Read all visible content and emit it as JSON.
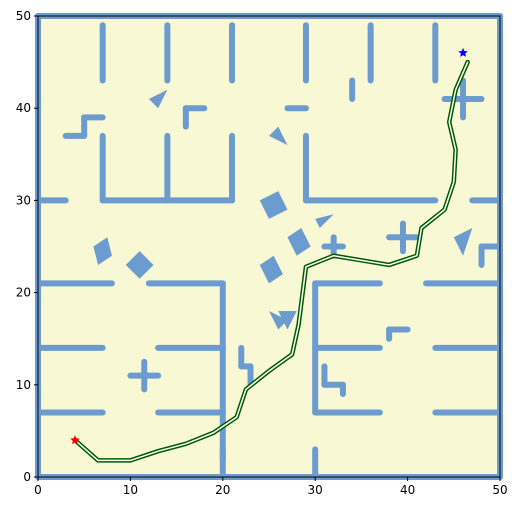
{
  "chart_data": {
    "type": "scatter",
    "xlim": [
      0,
      50
    ],
    "ylim": [
      0,
      50
    ],
    "x_ticks": [
      "0",
      "10",
      "20",
      "30",
      "40",
      "50"
    ],
    "y_ticks": [
      "0",
      "10",
      "20",
      "30",
      "40",
      "50"
    ],
    "grid": false,
    "colors": {
      "background": "#f8f8d4",
      "wall": "#6b9bcf",
      "path_outer": "#005a00",
      "path_inner": "#ffffff",
      "start": "#ff0000",
      "goal": "#0000ff"
    },
    "walls": [
      [
        [
          0,
          50
        ],
        [
          50,
          50
        ]
      ],
      [
        [
          0,
          0
        ],
        [
          50,
          0
        ]
      ],
      [
        [
          0,
          0
        ],
        [
          0,
          50
        ]
      ],
      [
        [
          50,
          0
        ],
        [
          50,
          50
        ]
      ],
      [
        [
          7,
          49
        ],
        [
          7,
          43
        ]
      ],
      [
        [
          14,
          49
        ],
        [
          14,
          43
        ]
      ],
      [
        [
          21,
          49
        ],
        [
          21,
          43
        ]
      ],
      [
        [
          29,
          49
        ],
        [
          29,
          43
        ]
      ],
      [
        [
          36,
          49
        ],
        [
          36,
          43
        ]
      ],
      [
        [
          43,
          49
        ],
        [
          43,
          43
        ]
      ],
      [
        [
          7,
          37
        ],
        [
          7,
          30
        ]
      ],
      [
        [
          14,
          37
        ],
        [
          14,
          30
        ]
      ],
      [
        [
          21,
          37
        ],
        [
          21,
          30
        ]
      ],
      [
        [
          7,
          30
        ],
        [
          21,
          30
        ]
      ],
      [
        [
          0,
          30
        ],
        [
          3,
          30
        ]
      ],
      [
        [
          29,
          37
        ],
        [
          29,
          30
        ]
      ],
      [
        [
          29,
          30
        ],
        [
          43,
          30
        ]
      ],
      [
        [
          47,
          30
        ],
        [
          50,
          30
        ]
      ],
      [
        [
          0,
          21
        ],
        [
          8,
          21
        ]
      ],
      [
        [
          12,
          21
        ],
        [
          20,
          21
        ]
      ],
      [
        [
          20,
          21
        ],
        [
          20,
          2
        ]
      ],
      [
        [
          0,
          14
        ],
        [
          7,
          14
        ]
      ],
      [
        [
          13,
          14
        ],
        [
          20,
          14
        ]
      ],
      [
        [
          0,
          7
        ],
        [
          7,
          7
        ]
      ],
      [
        [
          13,
          7
        ],
        [
          20,
          7
        ]
      ],
      [
        [
          30,
          21
        ],
        [
          37,
          21
        ]
      ],
      [
        [
          42,
          21
        ],
        [
          50,
          21
        ]
      ],
      [
        [
          30,
          21
        ],
        [
          30,
          7
        ]
      ],
      [
        [
          30,
          14
        ],
        [
          37,
          14
        ]
      ],
      [
        [
          43,
          14
        ],
        [
          50,
          14
        ]
      ],
      [
        [
          30,
          7
        ],
        [
          37,
          7
        ]
      ],
      [
        [
          43,
          7
        ],
        [
          50,
          7
        ]
      ],
      [
        [
          20,
          3
        ],
        [
          20,
          0
        ]
      ],
      [
        [
          30,
          3
        ],
        [
          30,
          0
        ]
      ],
      [
        [
          5,
          37
        ],
        [
          5,
          39
        ]
      ],
      [
        [
          5,
          39
        ],
        [
          7,
          39
        ]
      ],
      [
        [
          3,
          37
        ],
        [
          5,
          37
        ]
      ],
      [
        [
          16,
          38
        ],
        [
          16,
          40
        ]
      ],
      [
        [
          16,
          40
        ],
        [
          18,
          40
        ]
      ],
      [
        [
          27,
          40
        ],
        [
          29,
          40
        ]
      ],
      [
        [
          34,
          41
        ],
        [
          34,
          43
        ]
      ],
      [
        [
          44,
          41
        ],
        [
          48,
          41
        ]
      ],
      [
        [
          46,
          39
        ],
        [
          46,
          43
        ]
      ],
      [
        [
          10,
          11
        ],
        [
          13,
          11
        ]
      ],
      [
        [
          11.5,
          9.5
        ],
        [
          11.5,
          12.5
        ]
      ],
      [
        [
          31,
          25
        ],
        [
          33,
          25
        ]
      ],
      [
        [
          32,
          24
        ],
        [
          32,
          26
        ]
      ],
      [
        [
          38,
          26
        ],
        [
          41,
          26
        ]
      ],
      [
        [
          39.5,
          24.5
        ],
        [
          39.5,
          27.5
        ]
      ],
      [
        [
          38,
          16
        ],
        [
          40,
          16
        ]
      ],
      [
        [
          38,
          15
        ],
        [
          38,
          16
        ]
      ],
      [
        [
          22,
          14
        ],
        [
          22,
          12
        ]
      ],
      [
        [
          22,
          12
        ],
        [
          23,
          12
        ]
      ],
      [
        [
          23,
          12
        ],
        [
          23,
          10
        ]
      ],
      [
        [
          31,
          12
        ],
        [
          31,
          10
        ]
      ],
      [
        [
          31,
          10
        ],
        [
          33,
          10
        ]
      ],
      [
        [
          33,
          10
        ],
        [
          33,
          9
        ]
      ],
      [
        [
          48,
          25
        ],
        [
          50,
          25
        ]
      ],
      [
        [
          48,
          23
        ],
        [
          48,
          25
        ]
      ]
    ],
    "obstacles": [
      [
        [
          12,
          41
        ],
        [
          14,
          42
        ],
        [
          13,
          40
        ]
      ],
      [
        [
          25,
          37
        ],
        [
          27,
          36
        ],
        [
          26,
          38
        ]
      ],
      [
        [
          30,
          28
        ],
        [
          32,
          28.5
        ],
        [
          30.5,
          27
        ]
      ],
      [
        [
          45,
          26
        ],
        [
          47,
          27
        ],
        [
          46,
          24
        ]
      ],
      [
        [
          25,
          18
        ],
        [
          27,
          17
        ],
        [
          26,
          16
        ]
      ],
      [
        [
          6,
          25
        ],
        [
          7.5,
          26
        ],
        [
          8,
          24
        ],
        [
          6.5,
          23
        ]
      ],
      [
        [
          9.5,
          23
        ],
        [
          11,
          24.5
        ],
        [
          12.5,
          23
        ],
        [
          11,
          21.5
        ]
      ],
      [
        [
          24,
          30
        ],
        [
          26,
          31
        ],
        [
          27,
          29
        ],
        [
          25,
          28
        ]
      ],
      [
        [
          27,
          26
        ],
        [
          28.5,
          27
        ],
        [
          29.5,
          25
        ],
        [
          28,
          24
        ]
      ],
      [
        [
          24,
          23
        ],
        [
          25.5,
          24
        ],
        [
          26.5,
          22
        ],
        [
          25,
          21
        ]
      ],
      [
        [
          26,
          18
        ],
        [
          28,
          18
        ],
        [
          27,
          16
        ]
      ]
    ],
    "path": [
      [
        4,
        4
      ],
      [
        6.5,
        1.8
      ],
      [
        10,
        1.8
      ],
      [
        13,
        2.8
      ],
      [
        16,
        3.6
      ],
      [
        19,
        4.8
      ],
      [
        21.5,
        6.5
      ],
      [
        22.5,
        9.5
      ],
      [
        25,
        11.5
      ],
      [
        27.5,
        13.3
      ],
      [
        28.2,
        16.5
      ],
      [
        29,
        22.8
      ],
      [
        32,
        24
      ],
      [
        35,
        23.5
      ],
      [
        38,
        23
      ],
      [
        41,
        24
      ],
      [
        41.5,
        27
      ],
      [
        44,
        29
      ],
      [
        45,
        32
      ],
      [
        45.2,
        35.5
      ],
      [
        44.5,
        38.5
      ],
      [
        45.2,
        42
      ],
      [
        46.5,
        45
      ]
    ],
    "start": [
      4,
      4
    ],
    "goal": [
      46,
      46
    ]
  }
}
